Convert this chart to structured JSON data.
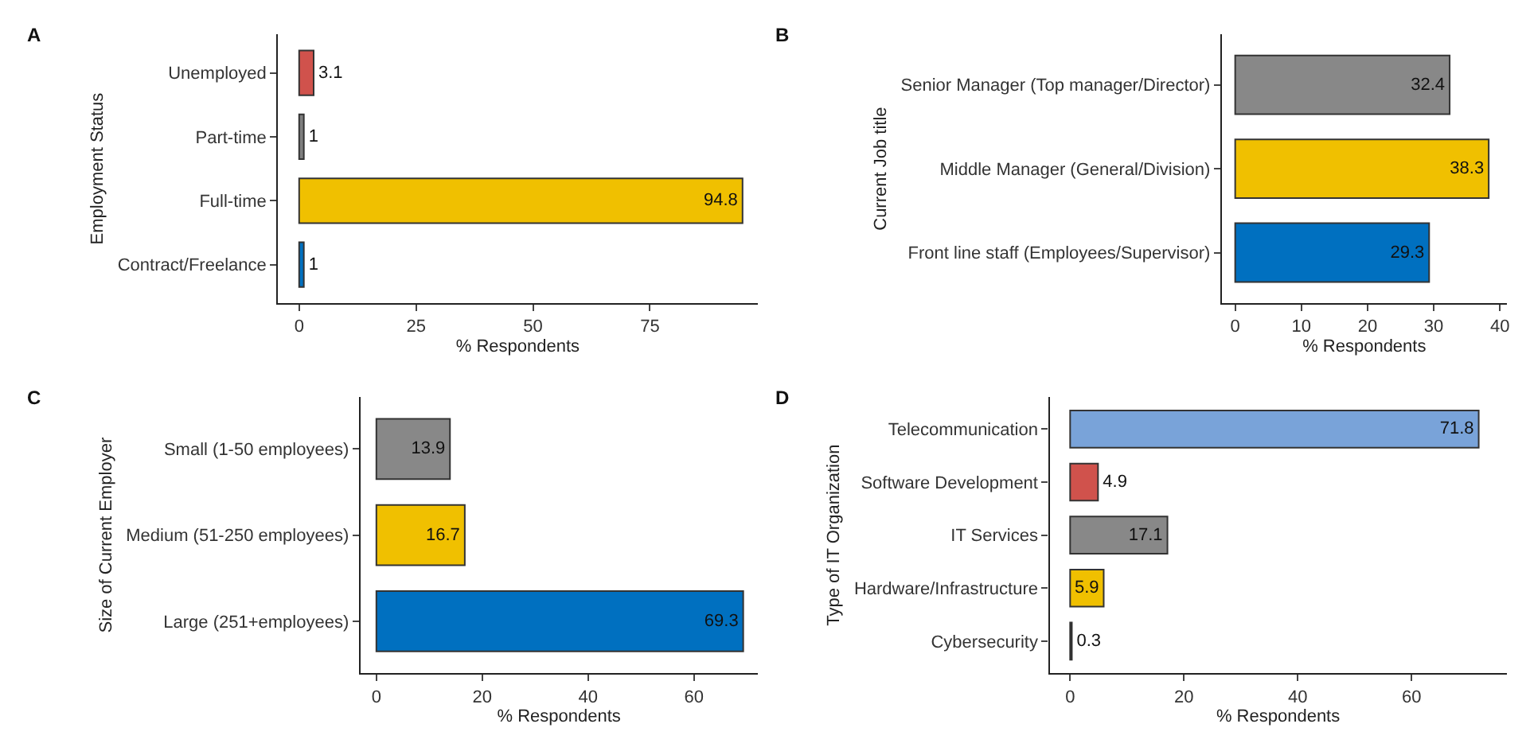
{
  "chart_data": [
    {
      "type": "bar",
      "orientation": "horizontal",
      "title": "A",
      "ylabel": "Employment Status",
      "xlabel": "% Respondents",
      "categories": [
        "Unemployed",
        "Part-time",
        "Full-time",
        "Contract/Freelance"
      ],
      "values": [
        3.1,
        1,
        94.8,
        1
      ],
      "colors": [
        "#d0524c",
        "#7f7f7f",
        "#f0c000",
        "#0070c0"
      ],
      "xlim": [
        -4.5,
        98
      ],
      "xticks": [
        0,
        25,
        50,
        75
      ],
      "data_labels": true
    },
    {
      "type": "bar",
      "orientation": "horizontal",
      "title": "B",
      "ylabel": "Current Job title",
      "xlabel": "% Respondents",
      "categories": [
        "Senior Manager (Top manager/Director)",
        "Middle Manager (General/Division)",
        "Front line staff (Employees/Supervisor)"
      ],
      "values": [
        32.4,
        38.3,
        29.3
      ],
      "colors": [
        "#888888",
        "#f0c000",
        "#0070c0"
      ],
      "xlim": [
        -2,
        41
      ],
      "xticks": [
        0,
        10,
        20,
        30,
        40
      ],
      "data_labels": true
    },
    {
      "type": "bar",
      "orientation": "horizontal",
      "title": "C",
      "ylabel": "Size of Current Employer",
      "xlabel": "% Respondents",
      "categories": [
        "Small (1-50 employees)",
        "Medium (51-250 employees)",
        "Large (251+employees)"
      ],
      "values": [
        13.9,
        16.7,
        69.3
      ],
      "colors": [
        "#888888",
        "#f0c000",
        "#0070c0"
      ],
      "xlim": [
        -3,
        72
      ],
      "xticks": [
        0,
        20,
        40,
        60
      ],
      "data_labels": true
    },
    {
      "type": "bar",
      "orientation": "horizontal",
      "title": "D",
      "ylabel": "Type of IT Organization",
      "xlabel": "% Respondents",
      "categories": [
        "Telecommunication",
        "Software Development",
        "IT Services",
        "Hardware/Infrastructure",
        "Cybersecurity"
      ],
      "values": [
        71.8,
        4.9,
        17.1,
        5.9,
        0.3
      ],
      "colors": [
        "#79a3d9",
        "#d0524c",
        "#888888",
        "#f0c000",
        "#111111"
      ],
      "xlim": [
        -3.6,
        76.7
      ],
      "xticks": [
        0,
        20,
        40,
        60
      ],
      "data_labels": true
    }
  ]
}
